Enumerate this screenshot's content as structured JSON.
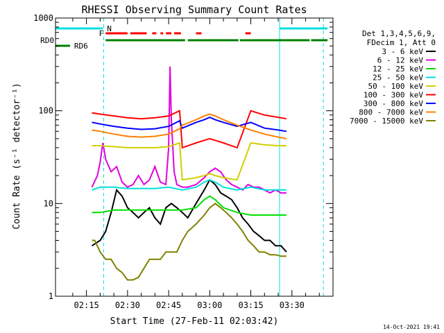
{
  "chart_data": {
    "type": "line",
    "title": "RHESSI Observing Summary Count Rates",
    "xlabel": "Start Time (27-Feb-11 02:03:42)",
    "ylabel": "Count Rate (s⁻¹ detector⁻¹)",
    "yscale": "log",
    "ylim": [
      1,
      1000
    ],
    "xlim_minutes": [
      3.7,
      105
    ],
    "x_ticks": [
      {
        "m": 15,
        "label": "02:15"
      },
      {
        "m": 30,
        "label": "02:30"
      },
      {
        "m": 45,
        "label": "02:45"
      },
      {
        "m": 60,
        "label": "03:00"
      },
      {
        "m": 75,
        "label": "03:15"
      },
      {
        "m": 90,
        "label": "03:30"
      }
    ],
    "y_ticks": [
      {
        "v": 1,
        "label": "1"
      },
      {
        "v": 10,
        "label": "10"
      },
      {
        "v": 100,
        "label": "100"
      },
      {
        "v": 1000,
        "label": "1000"
      }
    ],
    "legend": {
      "header": [
        "Det 1,3,4,5,6,9,",
        "FDecim 1, Att 0"
      ],
      "placement": "right"
    },
    "series": [
      {
        "name": "3 - 6 keV",
        "color": "#000000",
        "x": [
          17,
          20,
          22,
          24,
          26,
          28,
          30,
          32,
          34,
          36,
          38,
          40,
          42,
          44,
          46,
          48,
          50,
          52,
          55,
          58,
          60,
          62,
          64,
          66,
          68,
          70,
          72,
          74,
          76,
          78,
          80,
          82,
          84,
          86,
          88
        ],
        "values": [
          3.5,
          4,
          5,
          8,
          14,
          12,
          9,
          8,
          7,
          8,
          9,
          7,
          6,
          9,
          10,
          9,
          8,
          7,
          10,
          14,
          18,
          16,
          13,
          12,
          11,
          9,
          7,
          6,
          5,
          4.5,
          4,
          4,
          3.5,
          3.5,
          3
        ]
      },
      {
        "name": "6 - 12 keV",
        "color": "#e000e0",
        "x": [
          17,
          19,
          20,
          21,
          22,
          24,
          26,
          28,
          30,
          32,
          34,
          36,
          38,
          40,
          42,
          44,
          45,
          45.5,
          46,
          47,
          48,
          50,
          52,
          55,
          58,
          60,
          62,
          64,
          66,
          68,
          70,
          72,
          74,
          76,
          78,
          80,
          82,
          84,
          86,
          88
        ],
        "values": [
          15,
          20,
          28,
          45,
          30,
          22,
          25,
          17,
          15,
          16,
          20,
          16,
          18,
          25,
          17,
          16,
          40,
          300,
          80,
          22,
          16,
          15,
          15,
          16,
          19,
          22,
          24,
          22,
          18,
          16,
          15,
          14,
          16,
          15,
          15,
          14,
          13,
          14,
          13,
          13
        ]
      },
      {
        "name": "12 - 25 keV",
        "color": "#00e000",
        "x": [
          17,
          20,
          25,
          30,
          35,
          40,
          45,
          50,
          55,
          58,
          60,
          62,
          65,
          70,
          75,
          80,
          85,
          88
        ],
        "values": [
          8,
          8,
          8.5,
          8.5,
          8.5,
          8.5,
          8.5,
          8.5,
          9,
          11,
          12,
          11,
          9,
          8,
          7.5,
          7.5,
          7.5,
          7.5
        ]
      },
      {
        "name": "25 - 50 keV",
        "color": "#00e0e0",
        "x": [
          17,
          20,
          25,
          30,
          35,
          40,
          45,
          50,
          55,
          58,
          60,
          62,
          65,
          70,
          75,
          80,
          85,
          88
        ],
        "values": [
          14,
          15,
          15,
          14.5,
          14.5,
          14.5,
          15,
          14,
          15,
          17,
          18,
          17,
          15,
          14,
          15,
          14,
          14,
          14
        ]
      },
      {
        "name": "50 - 100 keV",
        "color": "#d0d000",
        "x": [
          17,
          20,
          25,
          30,
          35,
          40,
          45,
          49,
          50,
          55,
          58,
          60,
          62,
          65,
          70,
          75,
          80,
          85,
          88
        ],
        "values": [
          42,
          42,
          41,
          40,
          40,
          40,
          41,
          45,
          18,
          19,
          20,
          21,
          20,
          19,
          18,
          45,
          43,
          42,
          42
        ]
      },
      {
        "name": "100 - 300 keV",
        "color": "#ff0000",
        "x": [
          17,
          20,
          25,
          30,
          35,
          40,
          45,
          49,
          50,
          55,
          58,
          60,
          62,
          65,
          70,
          75,
          80,
          85,
          88
        ],
        "values": [
          95,
          92,
          88,
          84,
          82,
          84,
          88,
          100,
          40,
          45,
          48,
          50,
          48,
          45,
          40,
          100,
          90,
          85,
          82
        ]
      },
      {
        "name": "300 - 800 keV",
        "color": "#0000ff",
        "x": [
          17,
          20,
          25,
          30,
          35,
          40,
          45,
          49,
          50,
          55,
          58,
          60,
          62,
          65,
          70,
          75,
          80,
          85,
          88
        ],
        "values": [
          75,
          72,
          68,
          65,
          63,
          64,
          68,
          78,
          65,
          75,
          80,
          85,
          80,
          75,
          68,
          75,
          65,
          62,
          60
        ]
      },
      {
        "name": "800 - 7000 keV",
        "color": "#ff8000",
        "x": [
          17,
          20,
          25,
          30,
          35,
          40,
          45,
          49,
          50,
          55,
          58,
          60,
          62,
          65,
          70,
          75,
          80,
          85,
          88
        ],
        "values": [
          62,
          60,
          56,
          53,
          52,
          53,
          56,
          64,
          70,
          80,
          88,
          92,
          88,
          80,
          70,
          62,
          56,
          52,
          50
        ]
      },
      {
        "name": "7000 - 15000 keV",
        "color": "#808000",
        "x": [
          17,
          18,
          20,
          22,
          24,
          26,
          28,
          30,
          32,
          34,
          36,
          38,
          40,
          42,
          44,
          46,
          48,
          50,
          52,
          55,
          58,
          60,
          62,
          64,
          66,
          68,
          70,
          72,
          74,
          76,
          78,
          80,
          82,
          84,
          86,
          88
        ],
        "values": [
          4,
          4,
          3,
          2.5,
          2.5,
          2,
          1.8,
          1.5,
          1.5,
          1.6,
          2,
          2.5,
          2.5,
          2.5,
          3,
          3,
          3,
          4,
          5,
          6,
          7.5,
          9,
          10,
          9,
          8,
          7,
          6,
          5,
          4,
          3.5,
          3,
          3,
          2.8,
          2.8,
          2.7,
          2.7
        ]
      }
    ],
    "flags": [
      {
        "label": "N",
        "color": "#00e0e0",
        "segments": [
          [
            3.7,
            21
          ],
          [
            85.5,
            103
          ]
        ]
      },
      {
        "label": "F",
        "color": "#ff0000",
        "segments": [
          [
            22,
            30
          ],
          [
            31,
            37
          ],
          [
            39,
            40.5
          ],
          [
            42,
            43
          ],
          [
            44,
            46
          ],
          [
            47,
            49.5
          ],
          [
            55,
            57
          ],
          [
            73,
            75
          ]
        ]
      },
      {
        "label": "RD0",
        "color": "#008000",
        "segments": [
          [
            22,
            51
          ],
          [
            52,
            70.5
          ],
          [
            71,
            96.5
          ],
          [
            97,
            103
          ]
        ]
      },
      {
        "label": "RD6",
        "color": "#008000",
        "segments": [
          [
            3.7,
            9
          ]
        ]
      }
    ],
    "markers": [
      {
        "m": 21.3,
        "color": "#00e0e0",
        "style": "dashed"
      },
      {
        "m": 85.5,
        "color": "#00e0e0",
        "style": "solid"
      },
      {
        "m": 101.5,
        "color": "#00e0e0",
        "style": "dashed"
      }
    ],
    "footer": "14-Oct-2021 19:41"
  }
}
